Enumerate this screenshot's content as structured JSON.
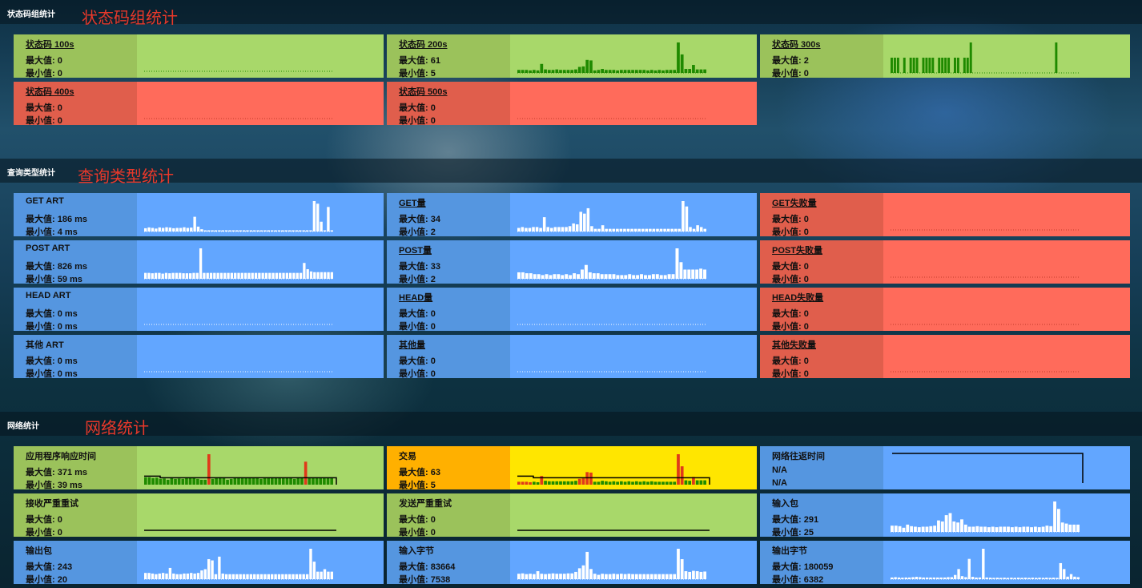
{
  "sections": [
    {
      "small_title": "状态码组统计",
      "big_title": "状态码组统计"
    },
    {
      "small_title": "查询类型统计",
      "big_title": "查询类型统计"
    },
    {
      "small_title": "网络统计",
      "big_title": "网络统计"
    }
  ],
  "tiles": [
    {
      "id": "status-100s",
      "title": "状态码 100s",
      "l1": "最大值: 0",
      "l2": "最小值: 0",
      "theme": "green",
      "underline": true,
      "chart": "dotted",
      "barcolor": "#1f8a00"
    },
    {
      "id": "status-200s",
      "title": "状态码 200s",
      "l1": "最大值: 61",
      "l2": "最小值: 5",
      "theme": "green",
      "underline": true,
      "chart": "bars",
      "barcolor": "#1f8a00",
      "values": [
        6,
        6,
        6,
        5,
        6,
        5,
        18,
        7,
        6,
        6,
        7,
        6,
        6,
        6,
        6,
        7,
        12,
        13,
        26,
        25,
        5,
        6,
        8,
        6,
        6,
        6,
        5,
        6,
        6,
        6,
        6,
        6,
        6,
        6,
        5,
        6,
        5,
        6,
        5,
        6,
        6,
        6,
        61,
        37,
        8,
        8,
        16,
        7,
        7,
        7
      ]
    },
    {
      "id": "status-300s",
      "title": "状态码 300s",
      "l1": "最大值: 2",
      "l2": "最小值: 0",
      "theme": "green",
      "underline": true,
      "chart": "bars",
      "barcolor": "#1f8a00",
      "values": [
        1,
        1,
        1,
        0,
        1,
        0,
        1,
        1,
        1,
        0,
        1,
        1,
        1,
        1,
        0,
        1,
        1,
        1,
        1,
        0,
        1,
        1,
        0,
        1,
        1,
        2,
        0,
        0,
        0,
        0,
        0,
        0,
        0,
        0,
        0,
        0,
        0,
        0,
        0,
        0,
        0,
        0,
        0,
        0,
        0,
        0,
        0,
        0,
        0,
        0,
        0,
        0,
        2,
        0,
        0,
        0,
        0,
        0,
        0,
        0
      ]
    },
    {
      "id": "status-400s",
      "title": "状态码 400s",
      "l1": "最大值: 0",
      "l2": "最小值: 0",
      "theme": "red",
      "underline": true,
      "chart": "dotted",
      "barcolor": "#c03a2a"
    },
    {
      "id": "status-500s",
      "title": "状态码 500s",
      "l1": "最大值: 0",
      "l2": "最小值: 0",
      "theme": "red",
      "underline": true,
      "chart": "dotted",
      "barcolor": "#c03a2a"
    },
    {
      "id": "get-art",
      "title": "GET ART",
      "l1": "最大值: 186 ms",
      "l2": "最小值: 4 ms",
      "theme": "blue",
      "underline": false,
      "chart": "bars",
      "barcolor": "#ffffff",
      "values": [
        20,
        25,
        22,
        18,
        25,
        22,
        26,
        24,
        20,
        22,
        22,
        26,
        22,
        24,
        90,
        30,
        14,
        6,
        6,
        6,
        6,
        6,
        6,
        6,
        6,
        6,
        6,
        6,
        6,
        6,
        6,
        6,
        6,
        6,
        6,
        6,
        6,
        6,
        6,
        6,
        6,
        6,
        6,
        6,
        6,
        6,
        6,
        6,
        186,
        170,
        60,
        6,
        150,
        6
      ]
    },
    {
      "id": "get-count",
      "title": "GET量",
      "l1": "最大值: 34",
      "l2": "最小值: 2",
      "theme": "blue",
      "underline": true,
      "chart": "bars",
      "barcolor": "#ffffff",
      "values": [
        4,
        5,
        4,
        4,
        5,
        5,
        4,
        16,
        5,
        4,
        5,
        5,
        5,
        5,
        6,
        9,
        8,
        22,
        20,
        26,
        6,
        3,
        3,
        7,
        3,
        3,
        3,
        3,
        3,
        3,
        3,
        3,
        3,
        3,
        3,
        3,
        3,
        3,
        3,
        3,
        3,
        3,
        3,
        3,
        3,
        34,
        28,
        5,
        3,
        7,
        5,
        3
      ]
    },
    {
      "id": "get-fail",
      "title": "GET失败量",
      "l1": "最大值: 0",
      "l2": "最小值: 0",
      "theme": "red",
      "underline": true,
      "chart": "dotted",
      "barcolor": "#c03a2a"
    },
    {
      "id": "post-art",
      "title": "POST ART",
      "l1": "最大值: 826 ms",
      "l2": "最小值: 59 ms",
      "theme": "blue",
      "underline": false,
      "chart": "bars",
      "barcolor": "#ffffff",
      "values": [
        160,
        160,
        150,
        160,
        160,
        140,
        160,
        150,
        160,
        160,
        160,
        150,
        150,
        150,
        160,
        160,
        826,
        160,
        160,
        160,
        160,
        160,
        160,
        160,
        160,
        160,
        160,
        160,
        160,
        160,
        160,
        160,
        160,
        160,
        160,
        160,
        160,
        160,
        160,
        160,
        160,
        160,
        160,
        160,
        160,
        160,
        430,
        260,
        200,
        180,
        180,
        180,
        180,
        180,
        180
      ]
    },
    {
      "id": "post-count",
      "title": "POST量",
      "l1": "最大值: 33",
      "l2": "最小值: 2",
      "theme": "blue",
      "underline": true,
      "chart": "bars",
      "barcolor": "#ffffff",
      "values": [
        7,
        7,
        6,
        6,
        5,
        5,
        4,
        5,
        4,
        5,
        5,
        4,
        5,
        4,
        6,
        5,
        10,
        15,
        7,
        6,
        6,
        5,
        5,
        5,
        5,
        4,
        4,
        4,
        5,
        4,
        4,
        5,
        4,
        4,
        5,
        5,
        4,
        4,
        5,
        5,
        33,
        18,
        10,
        10,
        10,
        10,
        11,
        10
      ]
    },
    {
      "id": "post-fail",
      "title": "POST失败量",
      "l1": "最大值: 0",
      "l2": "最小值: 0",
      "theme": "red",
      "underline": true,
      "chart": "dotted",
      "barcolor": "#c03a2a"
    },
    {
      "id": "head-art",
      "title": "HEAD ART",
      "l1": "最大值: 0 ms",
      "l2": "最小值: 0 ms",
      "theme": "blue",
      "underline": false,
      "chart": "dotted",
      "barcolor": "#ffffff"
    },
    {
      "id": "head-count",
      "title": "HEAD量",
      "l1": "最大值: 0",
      "l2": "最小值: 0",
      "theme": "blue",
      "underline": true,
      "chart": "dotted",
      "barcolor": "#ffffff"
    },
    {
      "id": "head-fail",
      "title": "HEAD失败量",
      "l1": "最大值: 0",
      "l2": "最小值: 0",
      "theme": "red",
      "underline": true,
      "chart": "dotted",
      "barcolor": "#c03a2a"
    },
    {
      "id": "other-art",
      "title": "其他 ART",
      "l1": "最大值: 0 ms",
      "l2": "最小值: 0 ms",
      "theme": "blue",
      "underline": false,
      "chart": "dotted",
      "barcolor": "#ffffff"
    },
    {
      "id": "other-count",
      "title": "其他量",
      "l1": "最大值: 0",
      "l2": "最小值: 0",
      "theme": "blue",
      "underline": true,
      "chart": "dotted",
      "barcolor": "#ffffff"
    },
    {
      "id": "other-fail",
      "title": "其他失败量",
      "l1": "最大值: 0",
      "l2": "最小值: 0",
      "theme": "red",
      "underline": true,
      "chart": "dotted",
      "barcolor": "#c03a2a"
    },
    {
      "id": "app-response",
      "title": "应用程序响应时间",
      "l1": "最大值: 371 ms",
      "l2": "最小值: 39 ms",
      "theme": "green",
      "underline": false,
      "chart": "baseline-bars",
      "barcolor": "#1f8a00",
      "highlight": "#e03a1a",
      "values": [
        90,
        90,
        80,
        85,
        70,
        75,
        60,
        80,
        70,
        75,
        70,
        80,
        80,
        80,
        70,
        60,
        60,
        371,
        70,
        80,
        90,
        80,
        60,
        70,
        80,
        80,
        80,
        80,
        80,
        80,
        80,
        70,
        80,
        80,
        80,
        80,
        80,
        80,
        80,
        80,
        70,
        80,
        80,
        280,
        80,
        80,
        80,
        80,
        80,
        80,
        80
      ],
      "highlights": [
        17,
        43
      ]
    },
    {
      "id": "transactions",
      "title": "交易",
      "l1": "最大值: 63",
      "l2": "最小值: 5",
      "theme": "orange",
      "underline": false,
      "chart": "baseline-bars",
      "barcolor": "#1f8a00",
      "highlight": "#e03a1a",
      "values": [
        6,
        6,
        6,
        5,
        6,
        5,
        18,
        8,
        7,
        7,
        7,
        7,
        7,
        7,
        7,
        8,
        12,
        13,
        26,
        25,
        6,
        6,
        8,
        7,
        6,
        7,
        6,
        7,
        6,
        7,
        6,
        7,
        6,
        7,
        6,
        7,
        6,
        6,
        6,
        6,
        6,
        6,
        63,
        38,
        9,
        8,
        16,
        9,
        9,
        9
      ],
      "highlights": [
        0,
        1,
        2,
        3,
        6,
        16,
        17,
        18,
        19,
        42,
        43,
        46
      ]
    },
    {
      "id": "network-rtt",
      "title": "网络往返时间",
      "l1": "N/A",
      "l2": "N/A",
      "theme": "blue",
      "underline": false,
      "chart": "rtt-line",
      "barcolor": "#000000"
    },
    {
      "id": "recv-retrans",
      "title": "接收严重重试",
      "l1": "最大值: 0",
      "l2": "最小值: 0",
      "theme": "green",
      "underline": false,
      "chart": "flat-line",
      "barcolor": "#000000"
    },
    {
      "id": "send-retrans",
      "title": "发送严重重试",
      "l1": "最大值: 0",
      "l2": "最小值: 0",
      "theme": "green",
      "underline": false,
      "chart": "flat-line",
      "barcolor": "#000000"
    },
    {
      "id": "input-packets",
      "title": "输入包",
      "l1": "最大值: 291",
      "l2": "最小值: 25",
      "theme": "blue",
      "underline": false,
      "chart": "bars",
      "barcolor": "#ffffff",
      "values": [
        60,
        60,
        55,
        40,
        70,
        55,
        50,
        45,
        50,
        50,
        55,
        60,
        110,
        100,
        160,
        180,
        100,
        90,
        120,
        70,
        50,
        50,
        55,
        50,
        50,
        45,
        50,
        45,
        50,
        50,
        50,
        45,
        50,
        45,
        50,
        50,
        45,
        50,
        45,
        50,
        60,
        55,
        291,
        220,
        90,
        80,
        70,
        70,
        70
      ]
    },
    {
      "id": "output-packets",
      "title": "输出包",
      "l1": "最大值: 243",
      "l2": "最小值: 20",
      "theme": "blue",
      "underline": false,
      "chart": "bars",
      "barcolor": "#ffffff",
      "values": [
        50,
        50,
        45,
        40,
        45,
        50,
        45,
        90,
        45,
        40,
        40,
        45,
        45,
        50,
        45,
        50,
        70,
        80,
        160,
        150,
        40,
        180,
        45,
        40,
        40,
        40,
        40,
        40,
        40,
        40,
        40,
        40,
        40,
        40,
        40,
        40,
        40,
        40,
        40,
        40,
        40,
        40,
        40,
        40,
        40,
        40,
        40,
        243,
        140,
        60,
        60,
        80,
        60,
        60
      ]
    },
    {
      "id": "input-bytes",
      "title": "输入字节",
      "l1": "最大值: 83664",
      "l2": "最小值: 7538",
      "theme": "blue",
      "underline": false,
      "chart": "bars",
      "barcolor": "#ffffff",
      "values": [
        15000,
        16000,
        14000,
        15000,
        14000,
        22000,
        15000,
        14000,
        15000,
        16000,
        15000,
        15000,
        15000,
        16000,
        16000,
        20000,
        30000,
        38000,
        75000,
        28000,
        15000,
        12000,
        15000,
        14000,
        14000,
        15000,
        14000,
        15000,
        14000,
        15000,
        14000,
        14000,
        14000,
        14000,
        14000,
        14000,
        14000,
        14000,
        14000,
        14000,
        14000,
        14000,
        83664,
        55000,
        22000,
        20000,
        23000,
        22000,
        20000,
        21000
      ]
    },
    {
      "id": "output-bytes",
      "title": "输出字节",
      "l1": "最大值: 180059",
      "l2": "最小值: 6382",
      "theme": "blue",
      "underline": false,
      "chart": "bars",
      "barcolor": "#ffffff",
      "values": [
        10000,
        12000,
        10000,
        9000,
        10000,
        10000,
        12000,
        14000,
        12000,
        10000,
        10000,
        10000,
        10000,
        10000,
        10000,
        10000,
        12000,
        12000,
        25000,
        60000,
        18000,
        12000,
        120000,
        14000,
        10000,
        10000,
        180059,
        10000,
        9000,
        8000,
        9000,
        8000,
        9000,
        8000,
        9000,
        8000,
        9000,
        8000,
        9000,
        8000,
        9000,
        8000,
        9000,
        8000,
        9000,
        8000,
        9000,
        8000,
        95000,
        60000,
        15000,
        30000,
        15000,
        12000
      ]
    }
  ]
}
